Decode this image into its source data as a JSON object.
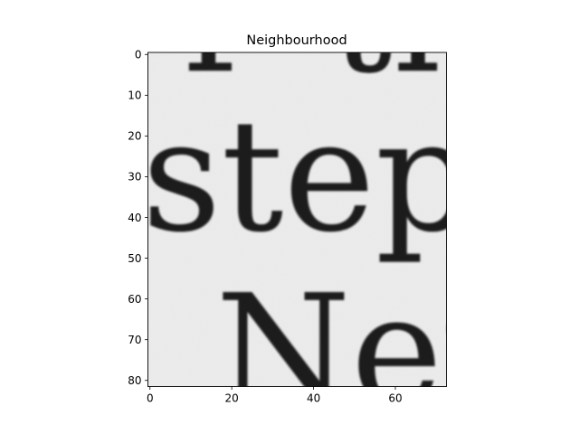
{
  "chart_data": {
    "type": "heatmap",
    "title": "Neighbourhood",
    "xlabel": "",
    "ylabel": "",
    "colormap": "gray",
    "image_size": {
      "cols": 73,
      "rows": 82
    },
    "xlim": [
      -0.5,
      72.5
    ],
    "ylim": [
      81.5,
      -0.5
    ],
    "x_ticks": [
      0,
      20,
      40,
      60
    ],
    "y_ticks": [
      0,
      10,
      20,
      30,
      40,
      50,
      60,
      70,
      80
    ],
    "grid": false,
    "legend": "none"
  },
  "image_content": {
    "background_color": "#ececec",
    "ink_color": "#1e1e1e",
    "fragments": [
      {
        "text": "r",
        "x": 8,
        "y": 4
      },
      {
        "text": "th",
        "x": 44,
        "y": 4
      },
      {
        "text": "step",
        "x": -2,
        "y": 43
      },
      {
        "text": "Net",
        "x": 16,
        "y": 86
      }
    ]
  }
}
